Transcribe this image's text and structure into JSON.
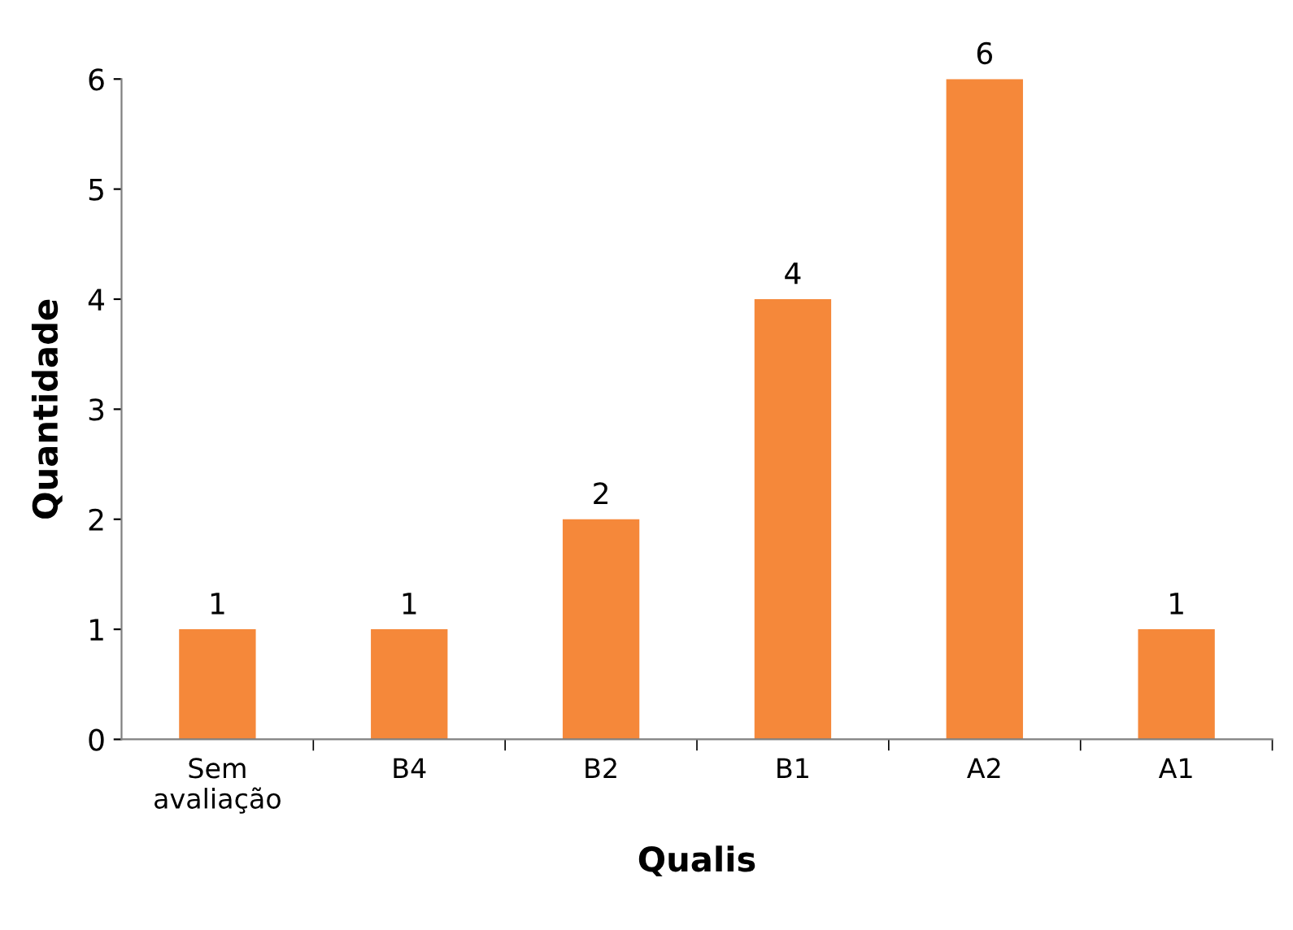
{
  "chart_data": {
    "type": "bar",
    "xlabel": "Qualis",
    "ylabel": "Quantidade",
    "categories": [
      "Sem\navaliação",
      "B4",
      "B2",
      "B1",
      "A2",
      "A1"
    ],
    "values": [
      1,
      1,
      2,
      4,
      6,
      1
    ],
    "color": "#f5883a",
    "ylim": [
      0,
      6
    ],
    "yticks": [
      0,
      1,
      2,
      3,
      4,
      5,
      6
    ],
    "grid": false,
    "data_labels": true
  }
}
